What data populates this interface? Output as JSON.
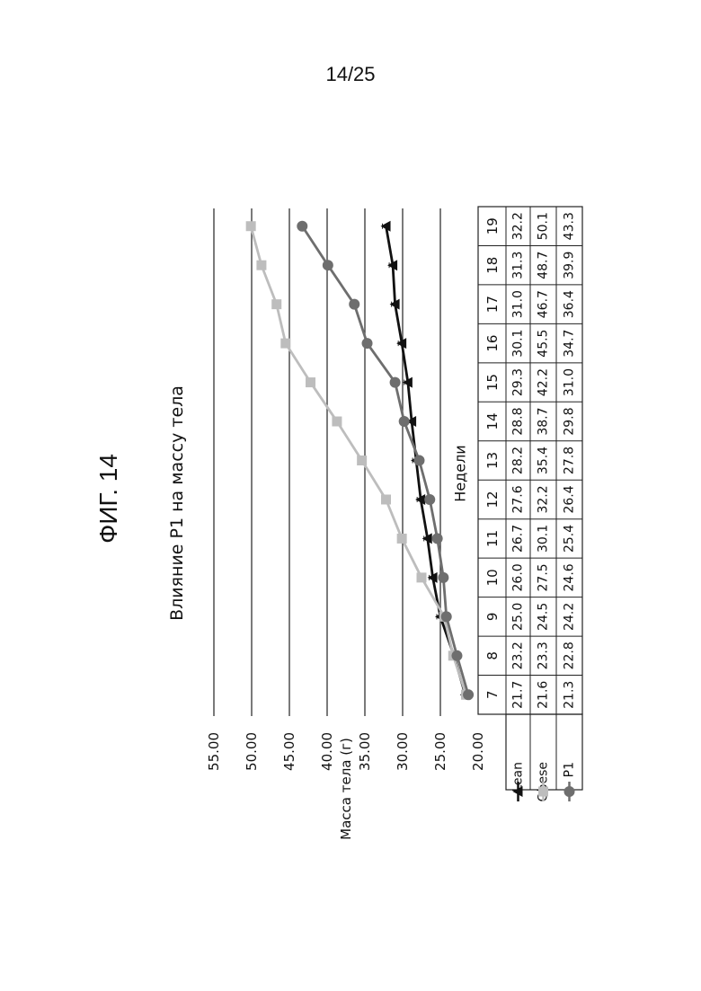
{
  "page": {
    "number": "14/25"
  },
  "figure": {
    "label": "ФИГ. 14"
  },
  "chart_data": {
    "type": "line",
    "title": "Влияние P1 на массу тела",
    "xlabel": "Недели",
    "ylabel": "Масса тела (г)",
    "ylim": [
      20,
      55
    ],
    "yticks": [
      "20.00",
      "25.00",
      "30.00",
      "35.00",
      "40.00",
      "45.00",
      "50.00",
      "55.00"
    ],
    "grid": true,
    "orientation": "rotated 90° counter-clockwise on page",
    "categories": [
      "7",
      "8",
      "9",
      "10",
      "11",
      "12",
      "13",
      "14",
      "15",
      "16",
      "17",
      "18",
      "19"
    ],
    "series": [
      {
        "name": "Lean",
        "marker": "triangle",
        "color": "#111111",
        "values": [
          21.7,
          23.2,
          25.0,
          26.0,
          26.7,
          27.6,
          28.2,
          28.8,
          29.3,
          30.1,
          31.0,
          31.3,
          32.2
        ]
      },
      {
        "name": "Obese",
        "marker": "square",
        "color": "#bdbdbd",
        "values": [
          21.6,
          23.3,
          24.5,
          27.5,
          30.1,
          32.2,
          35.4,
          38.7,
          42.2,
          45.5,
          46.7,
          48.7,
          50.1
        ]
      },
      {
        "name": "P1",
        "marker": "circle",
        "color": "#6e6e6e",
        "values": [
          21.3,
          22.8,
          24.2,
          24.6,
          25.4,
          26.4,
          27.8,
          29.8,
          31.0,
          34.7,
          36.4,
          39.9,
          43.3
        ]
      }
    ],
    "table": {
      "header": [
        "7",
        "8",
        "9",
        "10",
        "11",
        "12",
        "13",
        "14",
        "15",
        "16",
        "17",
        "18",
        "19"
      ],
      "rows": [
        {
          "label": "Lean",
          "cells": [
            "21.7",
            "23.2",
            "25.0",
            "26.0",
            "26.7",
            "27.6",
            "28.2",
            "28.8",
            "29.3",
            "30.1",
            "31.0",
            "31.3",
            "32.2"
          ]
        },
        {
          "label": "Obese",
          "cells": [
            "21.6",
            "23.3",
            "24.5",
            "27.5",
            "30.1",
            "32.2",
            "35.4",
            "38.7",
            "42.2",
            "45.5",
            "46.7",
            "48.7",
            "50.1"
          ]
        },
        {
          "label": "P1",
          "cells": [
            "21.3",
            "22.8",
            "24.2",
            "24.6",
            "25.4",
            "26.4",
            "27.8",
            "29.8",
            "31.0",
            "34.7",
            "36.4",
            "39.9",
            "43.3"
          ]
        }
      ]
    }
  }
}
